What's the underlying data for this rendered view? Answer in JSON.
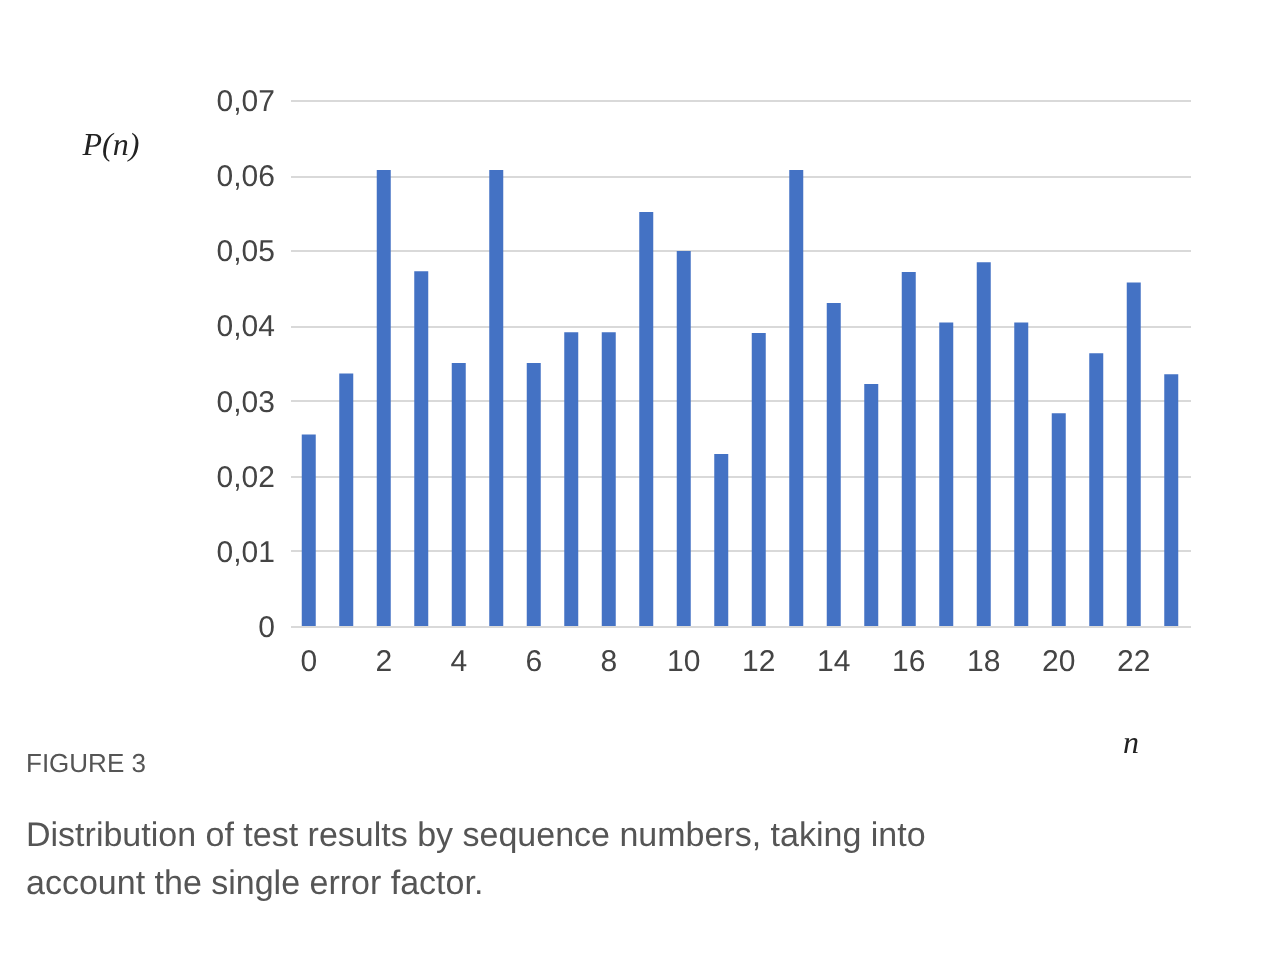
{
  "chart_data": {
    "type": "bar",
    "categories": [
      "0",
      null,
      "2",
      null,
      "4",
      null,
      "6",
      null,
      "8",
      null,
      "10",
      null,
      "12",
      null,
      "14",
      null,
      "16",
      null,
      "18",
      null,
      "20",
      null,
      "22",
      null
    ],
    "values": [
      0.0255,
      0.0336,
      0.0607,
      0.0472,
      0.035,
      0.0607,
      0.035,
      0.0391,
      0.0391,
      0.0551,
      0.0499,
      0.0229,
      0.039,
      0.0607,
      0.043,
      0.0322,
      0.0471,
      0.0404,
      0.0484,
      0.0404,
      0.0283,
      0.0363,
      0.0457,
      0.0335
    ],
    "color": "#4472c4",
    "ylim": [
      0,
      0.07
    ],
    "yticks": [
      {
        "value": 0,
        "label": "0"
      },
      {
        "value": 0.01,
        "label": "0,01"
      },
      {
        "value": 0.02,
        "label": "0,02"
      },
      {
        "value": 0.03,
        "label": "0,03"
      },
      {
        "value": 0.04,
        "label": "0,04"
      },
      {
        "value": 0.05,
        "label": "0,05"
      },
      {
        "value": 0.06,
        "label": "0,06"
      },
      {
        "value": 0.07,
        "label": "0,07"
      }
    ],
    "xlabel": "n",
    "ylabel": "P(n)",
    "grid": "y",
    "annotations": [
      "FIGURE 3",
      "Distribution of test results by sequence numbers, taking into account the single error factor."
    ]
  }
}
